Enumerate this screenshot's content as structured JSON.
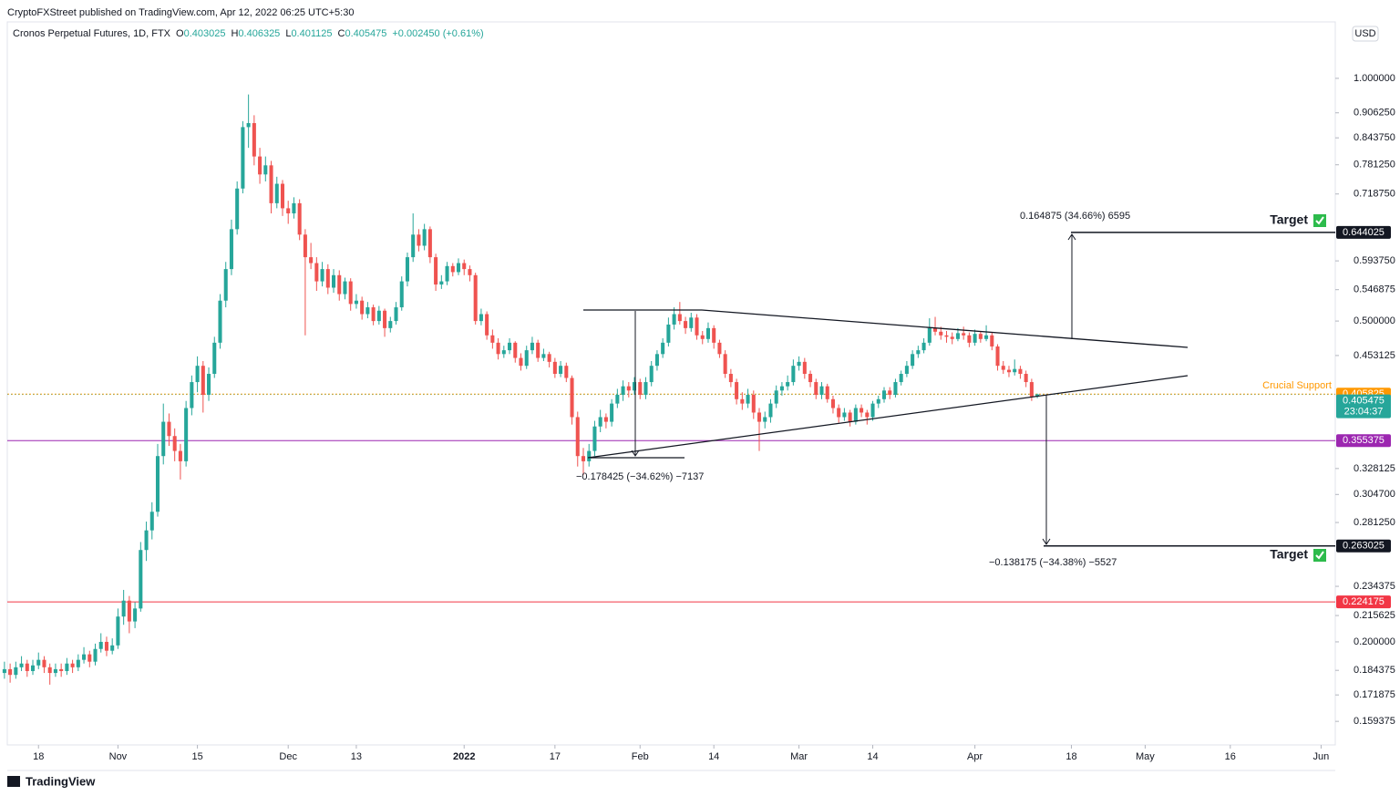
{
  "header": {
    "publisher": "CryptoFXStreet published on TradingView.com, Apr 12, 2022 06:25 UTC+5:30",
    "footer": "TradingView"
  },
  "chart_data": {
    "type": "candlestick",
    "title": "Cronos Perpetual Futures, 1D, FTX",
    "ohlc_labels": [
      "O",
      "H",
      "L",
      "C"
    ],
    "change": "+0.002450 (+0.61%)",
    "currency": "USD",
    "countdown": "23:04:37",
    "up_color": "#26a69a",
    "down_color": "#ef5350",
    "log_scale": true,
    "xlim": [
      0.5,
      234.5
    ],
    "xticks": [
      {
        "value": 6,
        "label": "18"
      },
      {
        "value": 20,
        "label": "Nov"
      },
      {
        "value": 34,
        "label": "15"
      },
      {
        "value": 50,
        "label": "Dec"
      },
      {
        "value": 62,
        "label": "13"
      },
      {
        "value": 81,
        "label": "2022"
      },
      {
        "value": 97,
        "label": "17"
      },
      {
        "value": 112,
        "label": "Feb"
      },
      {
        "value": 125,
        "label": "14"
      },
      {
        "value": 140,
        "label": "Mar"
      },
      {
        "value": 153,
        "label": "14"
      },
      {
        "value": 171,
        "label": "Apr"
      },
      {
        "value": 188,
        "label": "18"
      },
      {
        "value": 201,
        "label": "May"
      },
      {
        "value": 216,
        "label": "16"
      },
      {
        "value": 232,
        "label": "Jun"
      }
    ],
    "ylim": [
      0.149,
      1.175
    ],
    "yticks": [
      {
        "value": 1,
        "label": "1.000000"
      },
      {
        "value": 0.90625,
        "label": "0.906250"
      },
      {
        "value": 0.84375,
        "label": "0.843750"
      },
      {
        "value": 0.78125,
        "label": "0.781250"
      },
      {
        "value": 0.71875,
        "label": "0.718750"
      },
      {
        "value": 0.59375,
        "label": "0.593750"
      },
      {
        "value": 0.546875,
        "label": "0.546875"
      },
      {
        "value": 0.5,
        "label": "0.500000"
      },
      {
        "value": 0.453125,
        "label": "0.453125"
      },
      {
        "value": 0.328125,
        "label": "0.328125"
      },
      {
        "value": 0.3047,
        "label": "0.304700"
      },
      {
        "value": 0.28125,
        "label": "0.281250"
      },
      {
        "value": 0.234375,
        "label": "0.234375"
      },
      {
        "value": 0.215625,
        "label": "0.215625"
      },
      {
        "value": 0.2,
        "label": "0.200000"
      },
      {
        "value": 0.184375,
        "label": "0.184375"
      },
      {
        "value": 0.171875,
        "label": "0.171875"
      },
      {
        "value": 0.159375,
        "label": "0.159375"
      }
    ],
    "candles": [
      [
        0.183,
        0.189,
        0.18,
        0.185
      ],
      [
        0.185,
        0.188,
        0.178,
        0.182
      ],
      [
        0.182,
        0.189,
        0.18,
        0.186
      ],
      [
        0.186,
        0.192,
        0.184,
        0.188
      ],
      [
        0.188,
        0.19,
        0.181,
        0.184
      ],
      [
        0.184,
        0.19,
        0.182,
        0.187
      ],
      [
        0.187,
        0.194,
        0.185,
        0.19
      ],
      [
        0.19,
        0.192,
        0.183,
        0.186
      ],
      [
        0.186,
        0.188,
        0.177,
        0.183
      ],
      [
        0.183,
        0.188,
        0.181,
        0.185
      ],
      [
        0.185,
        0.188,
        0.181,
        0.184
      ],
      [
        0.184,
        0.191,
        0.182,
        0.188
      ],
      [
        0.188,
        0.19,
        0.183,
        0.186
      ],
      [
        0.186,
        0.193,
        0.184,
        0.19
      ],
      [
        0.19,
        0.197,
        0.188,
        0.193
      ],
      [
        0.193,
        0.195,
        0.186,
        0.189
      ],
      [
        0.189,
        0.199,
        0.187,
        0.196
      ],
      [
        0.196,
        0.205,
        0.194,
        0.2
      ],
      [
        0.2,
        0.203,
        0.192,
        0.195
      ],
      [
        0.195,
        0.202,
        0.193,
        0.198
      ],
      [
        0.198,
        0.22,
        0.196,
        0.215
      ],
      [
        0.215,
        0.232,
        0.21,
        0.225
      ],
      [
        0.225,
        0.228,
        0.205,
        0.212
      ],
      [
        0.212,
        0.224,
        0.208,
        0.22
      ],
      [
        0.22,
        0.266,
        0.218,
        0.26
      ],
      [
        0.26,
        0.282,
        0.252,
        0.275
      ],
      [
        0.275,
        0.298,
        0.268,
        0.29
      ],
      [
        0.29,
        0.352,
        0.286,
        0.34
      ],
      [
        0.34,
        0.395,
        0.332,
        0.375
      ],
      [
        0.375,
        0.384,
        0.35,
        0.36
      ],
      [
        0.36,
        0.368,
        0.335,
        0.345
      ],
      [
        0.345,
        0.352,
        0.318,
        0.335
      ],
      [
        0.335,
        0.398,
        0.33,
        0.39
      ],
      [
        0.39,
        0.428,
        0.382,
        0.42
      ],
      [
        0.42,
        0.452,
        0.408,
        0.44
      ],
      [
        0.44,
        0.446,
        0.385,
        0.405
      ],
      [
        0.405,
        0.438,
        0.398,
        0.43
      ],
      [
        0.43,
        0.478,
        0.425,
        0.47
      ],
      [
        0.47,
        0.54,
        0.462,
        0.53
      ],
      [
        0.53,
        0.592,
        0.52,
        0.58
      ],
      [
        0.58,
        0.668,
        0.57,
        0.65
      ],
      [
        0.65,
        0.745,
        0.64,
        0.73
      ],
      [
        0.73,
        0.885,
        0.72,
        0.87
      ],
      [
        0.87,
        0.955,
        0.82,
        0.88
      ],
      [
        0.88,
        0.9,
        0.78,
        0.8
      ],
      [
        0.8,
        0.82,
        0.74,
        0.76
      ],
      [
        0.76,
        0.8,
        0.745,
        0.78
      ],
      [
        0.78,
        0.79,
        0.68,
        0.7
      ],
      [
        0.7,
        0.755,
        0.69,
        0.74
      ],
      [
        0.74,
        0.748,
        0.675,
        0.69
      ],
      [
        0.69,
        0.705,
        0.66,
        0.68
      ],
      [
        0.68,
        0.712,
        0.67,
        0.7
      ],
      [
        0.7,
        0.708,
        0.63,
        0.64
      ],
      [
        0.64,
        0.65,
        0.48,
        0.6
      ],
      [
        0.6,
        0.625,
        0.58,
        0.59
      ],
      [
        0.59,
        0.6,
        0.545,
        0.56
      ],
      [
        0.56,
        0.592,
        0.552,
        0.58
      ],
      [
        0.58,
        0.588,
        0.54,
        0.55
      ],
      [
        0.55,
        0.58,
        0.542,
        0.57
      ],
      [
        0.57,
        0.578,
        0.53,
        0.54
      ],
      [
        0.54,
        0.566,
        0.532,
        0.56
      ],
      [
        0.56,
        0.565,
        0.515,
        0.525
      ],
      [
        0.525,
        0.54,
        0.518,
        0.53
      ],
      [
        0.53,
        0.536,
        0.502,
        0.51
      ],
      [
        0.51,
        0.528,
        0.504,
        0.52
      ],
      [
        0.52,
        0.524,
        0.494,
        0.5
      ],
      [
        0.5,
        0.522,
        0.495,
        0.515
      ],
      [
        0.515,
        0.518,
        0.478,
        0.49
      ],
      [
        0.49,
        0.506,
        0.484,
        0.5
      ],
      [
        0.5,
        0.528,
        0.495,
        0.52
      ],
      [
        0.52,
        0.568,
        0.515,
        0.56
      ],
      [
        0.56,
        0.608,
        0.552,
        0.6
      ],
      [
        0.6,
        0.68,
        0.592,
        0.64
      ],
      [
        0.64,
        0.65,
        0.61,
        0.62
      ],
      [
        0.62,
        0.66,
        0.612,
        0.65
      ],
      [
        0.65,
        0.655,
        0.59,
        0.6
      ],
      [
        0.6,
        0.606,
        0.545,
        0.555
      ],
      [
        0.555,
        0.57,
        0.548,
        0.56
      ],
      [
        0.56,
        0.592,
        0.554,
        0.585
      ],
      [
        0.585,
        0.59,
        0.568,
        0.575
      ],
      [
        0.575,
        0.598,
        0.57,
        0.59
      ],
      [
        0.59,
        0.596,
        0.57,
        0.58
      ],
      [
        0.58,
        0.586,
        0.56,
        0.57
      ],
      [
        0.57,
        0.574,
        0.495,
        0.5
      ],
      [
        0.5,
        0.518,
        0.494,
        0.51
      ],
      [
        0.51,
        0.514,
        0.474,
        0.48
      ],
      [
        0.48,
        0.488,
        0.462,
        0.47
      ],
      [
        0.47,
        0.476,
        0.448,
        0.455
      ],
      [
        0.455,
        0.466,
        0.45,
        0.46
      ],
      [
        0.46,
        0.476,
        0.455,
        0.47
      ],
      [
        0.47,
        0.472,
        0.444,
        0.45
      ],
      [
        0.45,
        0.456,
        0.434,
        0.44
      ],
      [
        0.44,
        0.466,
        0.436,
        0.46
      ],
      [
        0.46,
        0.478,
        0.455,
        0.47
      ],
      [
        0.47,
        0.474,
        0.445,
        0.45
      ],
      [
        0.45,
        0.462,
        0.446,
        0.455
      ],
      [
        0.455,
        0.458,
        0.438,
        0.445
      ],
      [
        0.445,
        0.45,
        0.425,
        0.43
      ],
      [
        0.43,
        0.446,
        0.426,
        0.44
      ],
      [
        0.44,
        0.444,
        0.42,
        0.425
      ],
      [
        0.425,
        0.428,
        0.372,
        0.38
      ],
      [
        0.38,
        0.386,
        0.33,
        0.34
      ],
      [
        0.34,
        0.348,
        0.322,
        0.335
      ],
      [
        0.335,
        0.352,
        0.33,
        0.345
      ],
      [
        0.345,
        0.376,
        0.34,
        0.37
      ],
      [
        0.37,
        0.388,
        0.364,
        0.38
      ],
      [
        0.38,
        0.384,
        0.368,
        0.375
      ],
      [
        0.375,
        0.4,
        0.37,
        0.395
      ],
      [
        0.395,
        0.412,
        0.39,
        0.405
      ],
      [
        0.405,
        0.422,
        0.398,
        0.415
      ],
      [
        0.415,
        0.42,
        0.402,
        0.41
      ],
      [
        0.41,
        0.426,
        0.405,
        0.42
      ],
      [
        0.42,
        0.424,
        0.4,
        0.405
      ],
      [
        0.405,
        0.426,
        0.4,
        0.42
      ],
      [
        0.42,
        0.446,
        0.415,
        0.44
      ],
      [
        0.44,
        0.46,
        0.434,
        0.455
      ],
      [
        0.455,
        0.476,
        0.45,
        0.47
      ],
      [
        0.47,
        0.505,
        0.465,
        0.495
      ],
      [
        0.495,
        0.52,
        0.488,
        0.51
      ],
      [
        0.51,
        0.528,
        0.495,
        0.5
      ],
      [
        0.5,
        0.506,
        0.482,
        0.49
      ],
      [
        0.49,
        0.512,
        0.485,
        0.505
      ],
      [
        0.505,
        0.51,
        0.474,
        0.48
      ],
      [
        0.48,
        0.486,
        0.468,
        0.475
      ],
      [
        0.475,
        0.498,
        0.47,
        0.49
      ],
      [
        0.49,
        0.494,
        0.462,
        0.47
      ],
      [
        0.47,
        0.474,
        0.45,
        0.455
      ],
      [
        0.455,
        0.46,
        0.425,
        0.43
      ],
      [
        0.43,
        0.436,
        0.414,
        0.42
      ],
      [
        0.42,
        0.424,
        0.394,
        0.4
      ],
      [
        0.4,
        0.408,
        0.388,
        0.395
      ],
      [
        0.395,
        0.412,
        0.39,
        0.405
      ],
      [
        0.405,
        0.41,
        0.378,
        0.385
      ],
      [
        0.385,
        0.39,
        0.345,
        0.375
      ],
      [
        0.375,
        0.386,
        0.368,
        0.38
      ],
      [
        0.38,
        0.4,
        0.374,
        0.395
      ],
      [
        0.395,
        0.416,
        0.39,
        0.41
      ],
      [
        0.41,
        0.42,
        0.404,
        0.415
      ],
      [
        0.415,
        0.428,
        0.41,
        0.42
      ],
      [
        0.42,
        0.448,
        0.416,
        0.44
      ],
      [
        0.44,
        0.452,
        0.434,
        0.445
      ],
      [
        0.445,
        0.45,
        0.424,
        0.43
      ],
      [
        0.43,
        0.434,
        0.414,
        0.42
      ],
      [
        0.42,
        0.424,
        0.4,
        0.405
      ],
      [
        0.405,
        0.42,
        0.4,
        0.415
      ],
      [
        0.415,
        0.418,
        0.396,
        0.4
      ],
      [
        0.4,
        0.404,
        0.384,
        0.39
      ],
      [
        0.39,
        0.394,
        0.374,
        0.38
      ],
      [
        0.38,
        0.39,
        0.376,
        0.385
      ],
      [
        0.385,
        0.388,
        0.37,
        0.375
      ],
      [
        0.375,
        0.394,
        0.372,
        0.39
      ],
      [
        0.39,
        0.394,
        0.38,
        0.385
      ],
      [
        0.385,
        0.388,
        0.372,
        0.38
      ],
      [
        0.38,
        0.398,
        0.376,
        0.395
      ],
      [
        0.395,
        0.404,
        0.39,
        0.4
      ],
      [
        0.4,
        0.414,
        0.396,
        0.41
      ],
      [
        0.41,
        0.414,
        0.4,
        0.405
      ],
      [
        0.405,
        0.424,
        0.402,
        0.42
      ],
      [
        0.42,
        0.434,
        0.416,
        0.43
      ],
      [
        0.43,
        0.446,
        0.426,
        0.44
      ],
      [
        0.44,
        0.46,
        0.436,
        0.455
      ],
      [
        0.455,
        0.466,
        0.45,
        0.46
      ],
      [
        0.46,
        0.476,
        0.456,
        0.47
      ],
      [
        0.47,
        0.504,
        0.466,
        0.49
      ],
      [
        0.49,
        0.506,
        0.48,
        0.485
      ],
      [
        0.485,
        0.492,
        0.474,
        0.48
      ],
      [
        0.48,
        0.486,
        0.47,
        0.478
      ],
      [
        0.478,
        0.484,
        0.468,
        0.475
      ],
      [
        0.475,
        0.49,
        0.472,
        0.483
      ],
      [
        0.483,
        0.492,
        0.474,
        0.48
      ],
      [
        0.48,
        0.484,
        0.464,
        0.47
      ],
      [
        0.47,
        0.488,
        0.466,
        0.482
      ],
      [
        0.482,
        0.486,
        0.47,
        0.475
      ],
      [
        0.475,
        0.494,
        0.472,
        0.48
      ],
      [
        0.48,
        0.484,
        0.46,
        0.465
      ],
      [
        0.465,
        0.468,
        0.434,
        0.44
      ],
      [
        0.44,
        0.446,
        0.43,
        0.435
      ],
      [
        0.435,
        0.44,
        0.426,
        0.432
      ],
      [
        0.432,
        0.448,
        0.428,
        0.436
      ],
      [
        0.436,
        0.44,
        0.424,
        0.43
      ],
      [
        0.43,
        0.434,
        0.414,
        0.42
      ],
      [
        0.42,
        0.424,
        0.398,
        0.403
      ],
      [
        0.403025,
        0.406325,
        0.401125,
        0.405475
      ]
    ],
    "levels": [
      {
        "value": 0.644025,
        "color": "#131722"
      },
      {
        "value": 0.405825,
        "color": "#ff9800",
        "label": "Crucial Support"
      },
      {
        "value": 0.355375,
        "color": "#9c27b0"
      },
      {
        "value": 0.263025,
        "color": "#131722"
      },
      {
        "value": 0.224175,
        "color": "#f23645"
      }
    ],
    "annotations": [
      "0.164875 (34.66%) 6595",
      "−0.178425 (−34.62%) −7137",
      "−0.138175 (−34.38%) −5527",
      "Target",
      "Target"
    ]
  }
}
